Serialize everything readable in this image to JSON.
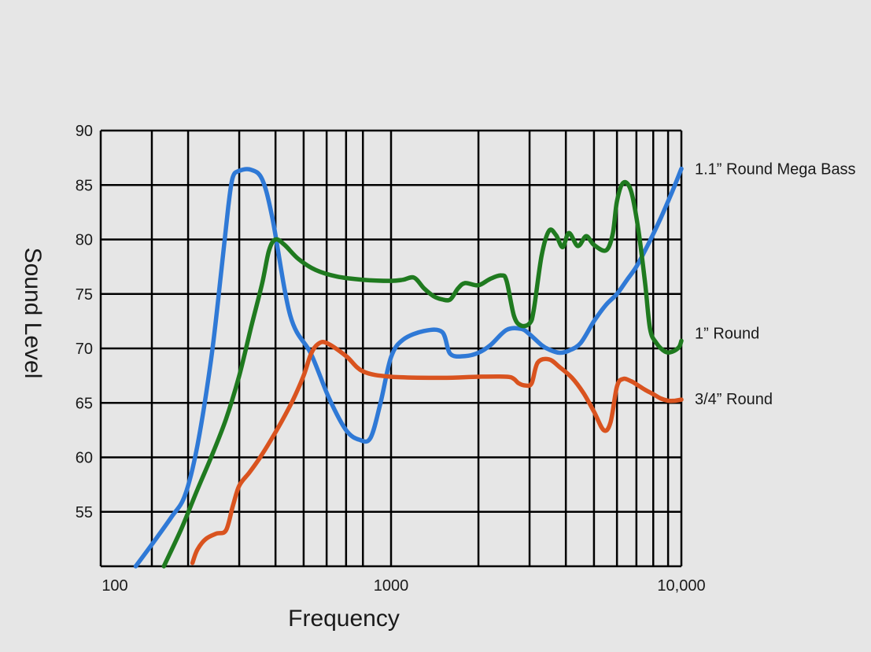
{
  "chart_data": {
    "type": "line",
    "xlabel": "Frequency",
    "ylabel": "Sound Level",
    "x_scale": "log",
    "xlim": [
      100,
      10000
    ],
    "ylim": [
      50,
      90
    ],
    "grid": true,
    "legend": "series labels at right end of lines",
    "x_tick_labels": [
      {
        "value": 100,
        "label": "100"
      },
      {
        "value": 1000,
        "label": "1000"
      },
      {
        "value": 10000,
        "label": "10,000"
      }
    ],
    "x_grid_values": [
      100,
      150,
      200,
      300,
      400,
      500,
      600,
      700,
      800,
      1000,
      2000,
      3000,
      4000,
      5000,
      6000,
      7000,
      8000,
      9000,
      10000
    ],
    "y_ticks": [
      90,
      85,
      80,
      75,
      70,
      65,
      60,
      55
    ],
    "y_grid_values": [
      50,
      55,
      60,
      65,
      70,
      75,
      80,
      85,
      90
    ],
    "series": [
      {
        "name": "1.1” Round Mega Bass",
        "color": "#2f79d6",
        "x": [
          132,
          150,
          175,
          195,
          215,
          240,
          260,
          275,
          285,
          300,
          330,
          360,
          390,
          450,
          530,
          610,
          700,
          780,
          850,
          920,
          1000,
          1100,
          1300,
          1500,
          1600,
          1800,
          2000,
          2200,
          2500,
          2800,
          3000,
          3300,
          3500,
          3800,
          4100,
          4500,
          5000,
          5500,
          6000,
          6500,
          7000,
          7500,
          8000,
          8500,
          9000,
          9500,
          10000
        ],
        "y": [
          50,
          52,
          54.5,
          56.5,
          61,
          69,
          77,
          83,
          85.7,
          86.3,
          86.4,
          85.5,
          82,
          73,
          69.5,
          65.5,
          62.5,
          61.6,
          61.8,
          65,
          69.2,
          70.8,
          71.6,
          71.5,
          69.5,
          69.3,
          69.6,
          70.3,
          71.7,
          71.8,
          71.3,
          70.3,
          69.9,
          69.6,
          69.8,
          70.5,
          72.5,
          74,
          75,
          76.3,
          77.5,
          79,
          80.5,
          82,
          83.5,
          85,
          86.5
        ]
      },
      {
        "name": "1” Round",
        "color": "#1f7a1f",
        "x": [
          165,
          190,
          215,
          240,
          270,
          300,
          330,
          360,
          380,
          400,
          430,
          480,
          550,
          650,
          800,
          1000,
          1100,
          1200,
          1300,
          1400,
          1500,
          1600,
          1700,
          1800,
          2000,
          2200,
          2400,
          2500,
          2650,
          2800,
          3000,
          3100,
          3300,
          3500,
          3700,
          3900,
          4100,
          4400,
          4700,
          5000,
          5500,
          5800,
          6000,
          6300,
          6700,
          7100,
          7500,
          7800,
          8200,
          8800,
          9300,
          9800,
          10000
        ],
        "y": [
          50,
          53.5,
          57,
          60,
          63.5,
          67.5,
          72,
          76,
          79,
          80,
          79.5,
          78.2,
          77.2,
          76.6,
          76.3,
          76.2,
          76.3,
          76.5,
          75.5,
          74.8,
          74.5,
          74.5,
          75.5,
          76,
          75.8,
          76.4,
          76.7,
          76.2,
          73,
          72.1,
          72.3,
          73.5,
          78.5,
          80.8,
          80.4,
          79.3,
          80.6,
          79.4,
          80.3,
          79.5,
          79,
          80.5,
          83.5,
          85.2,
          84.5,
          81,
          76,
          71.8,
          70.5,
          69.7,
          69.7,
          70.1,
          70.7
        ]
      },
      {
        "name": "3/4” Round",
        "color": "#d9531f",
        "x": [
          207,
          215,
          230,
          250,
          270,
          285,
          300,
          325,
          350,
          380,
          420,
          460,
          500,
          530,
          560,
          600,
          700,
          800,
          1000,
          1500,
          2000,
          2500,
          2650,
          2750,
          2900,
          3050,
          3200,
          3500,
          3800,
          4200,
          4600,
          5000,
          5400,
          5700,
          6000,
          6300,
          6700,
          7100,
          7500,
          8000,
          8500,
          9000,
          9500,
          10000
        ],
        "y": [
          50.3,
          51.5,
          52.5,
          53,
          53.3,
          55.5,
          57.4,
          58.6,
          59.8,
          61.3,
          63.3,
          65.3,
          67.5,
          69.5,
          70.4,
          70.5,
          69.3,
          67.9,
          67.4,
          67.3,
          67.4,
          67.4,
          67.2,
          66.8,
          66.6,
          66.8,
          68.7,
          69,
          68.3,
          67.3,
          65.9,
          64.2,
          62.5,
          63.2,
          66.5,
          67.2,
          67,
          66.6,
          66.2,
          65.8,
          65.4,
          65.2,
          65.2,
          65.3
        ]
      }
    ]
  }
}
